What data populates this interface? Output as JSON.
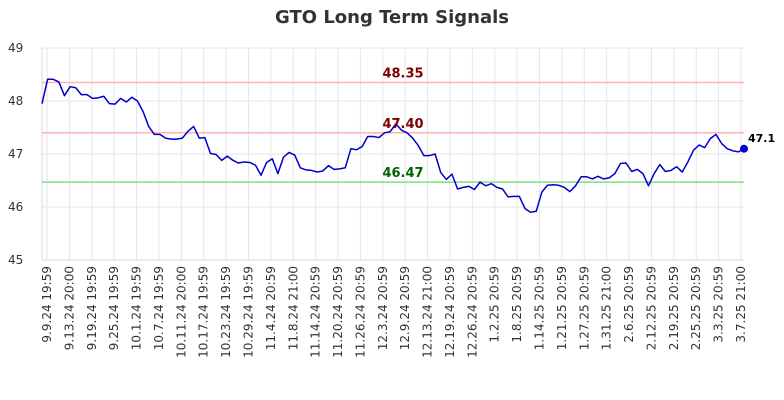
{
  "chart_data": {
    "type": "line",
    "title": "GTO Long Term Signals",
    "xlabel": "",
    "ylabel": "",
    "ylim": [
      45,
      49
    ],
    "yticks": [
      45,
      46,
      47,
      48,
      49
    ],
    "grid": true,
    "x_tick_labels": [
      "9.9.24 19:59",
      "9.13.24 20:00",
      "9.19.24 19:59",
      "9.25.24 19:59",
      "10.1.24 19:59",
      "10.7.24 19:59",
      "10.11.24 20:00",
      "10.17.24 19:59",
      "10.23.24 19:59",
      "10.29.24 19:59",
      "11.4.24 20:59",
      "11.8.24 21:00",
      "11.14.24 20:59",
      "11.20.24 20:59",
      "11.26.24 20:59",
      "12.3.24 20:59",
      "12.9.24 20:59",
      "12.13.24 21:00",
      "12.19.24 20:59",
      "12.26.24 20:59",
      "1.2.25 20:59",
      "1.8.25 20:59",
      "1.14.25 20:59",
      "1.21.25 20:59",
      "1.27.25 20:59",
      "1.31.25 21:00",
      "2.6.25 20:59",
      "2.12.25 20:59",
      "2.19.25 20:59",
      "2.25.25 20:59",
      "3.3.25 20:59",
      "3.7.25 21:00"
    ],
    "series": [
      {
        "color": "#0000cc",
        "values": [
          47.95,
          48.41,
          48.41,
          48.36,
          48.1,
          48.27,
          48.25,
          48.12,
          48.12,
          48.05,
          48.06,
          48.09,
          47.95,
          47.94,
          48.05,
          47.98,
          48.07,
          48.0,
          47.8,
          47.52,
          47.37,
          47.37,
          47.3,
          47.28,
          47.28,
          47.3,
          47.43,
          47.52,
          47.3,
          47.31,
          47.01,
          46.99,
          46.88,
          46.96,
          46.88,
          46.83,
          46.85,
          46.84,
          46.79,
          46.6,
          46.84,
          46.91,
          46.63,
          46.94,
          47.03,
          46.98,
          46.74,
          46.7,
          46.69,
          46.66,
          46.68,
          46.78,
          46.71,
          46.72,
          46.74,
          47.1,
          47.08,
          47.14,
          47.33,
          47.33,
          47.31,
          47.4,
          47.42,
          47.57,
          47.45,
          47.4,
          47.3,
          47.16,
          46.97,
          46.97,
          47.0,
          46.65,
          46.52,
          46.62,
          46.34,
          46.37,
          46.39,
          46.33,
          46.47,
          46.4,
          46.44,
          46.37,
          46.34,
          46.19,
          46.2,
          46.2,
          45.97,
          45.9,
          45.92,
          46.28,
          46.41,
          46.42,
          46.41,
          46.37,
          46.29,
          46.4,
          46.57,
          46.57,
          46.53,
          46.58,
          46.53,
          46.55,
          46.63,
          46.82,
          46.83,
          46.67,
          46.71,
          46.63,
          46.4,
          46.63,
          46.8,
          46.67,
          46.69,
          46.76,
          46.66,
          46.85,
          47.07,
          47.17,
          47.12,
          47.29,
          47.37,
          47.2,
          47.1,
          47.06,
          47.04,
          47.1
        ]
      }
    ],
    "levels": [
      {
        "value": 48.35,
        "label": "48.35",
        "line_color": "#ffb3b3",
        "text_color": "#800000"
      },
      {
        "value": 47.4,
        "label": "47.40",
        "line_color": "#ffb3b3",
        "text_color": "#800000"
      },
      {
        "value": 46.47,
        "label": "46.47",
        "line_color": "#80dd80",
        "text_color": "#006400"
      }
    ],
    "last_value_label": "47.1"
  }
}
